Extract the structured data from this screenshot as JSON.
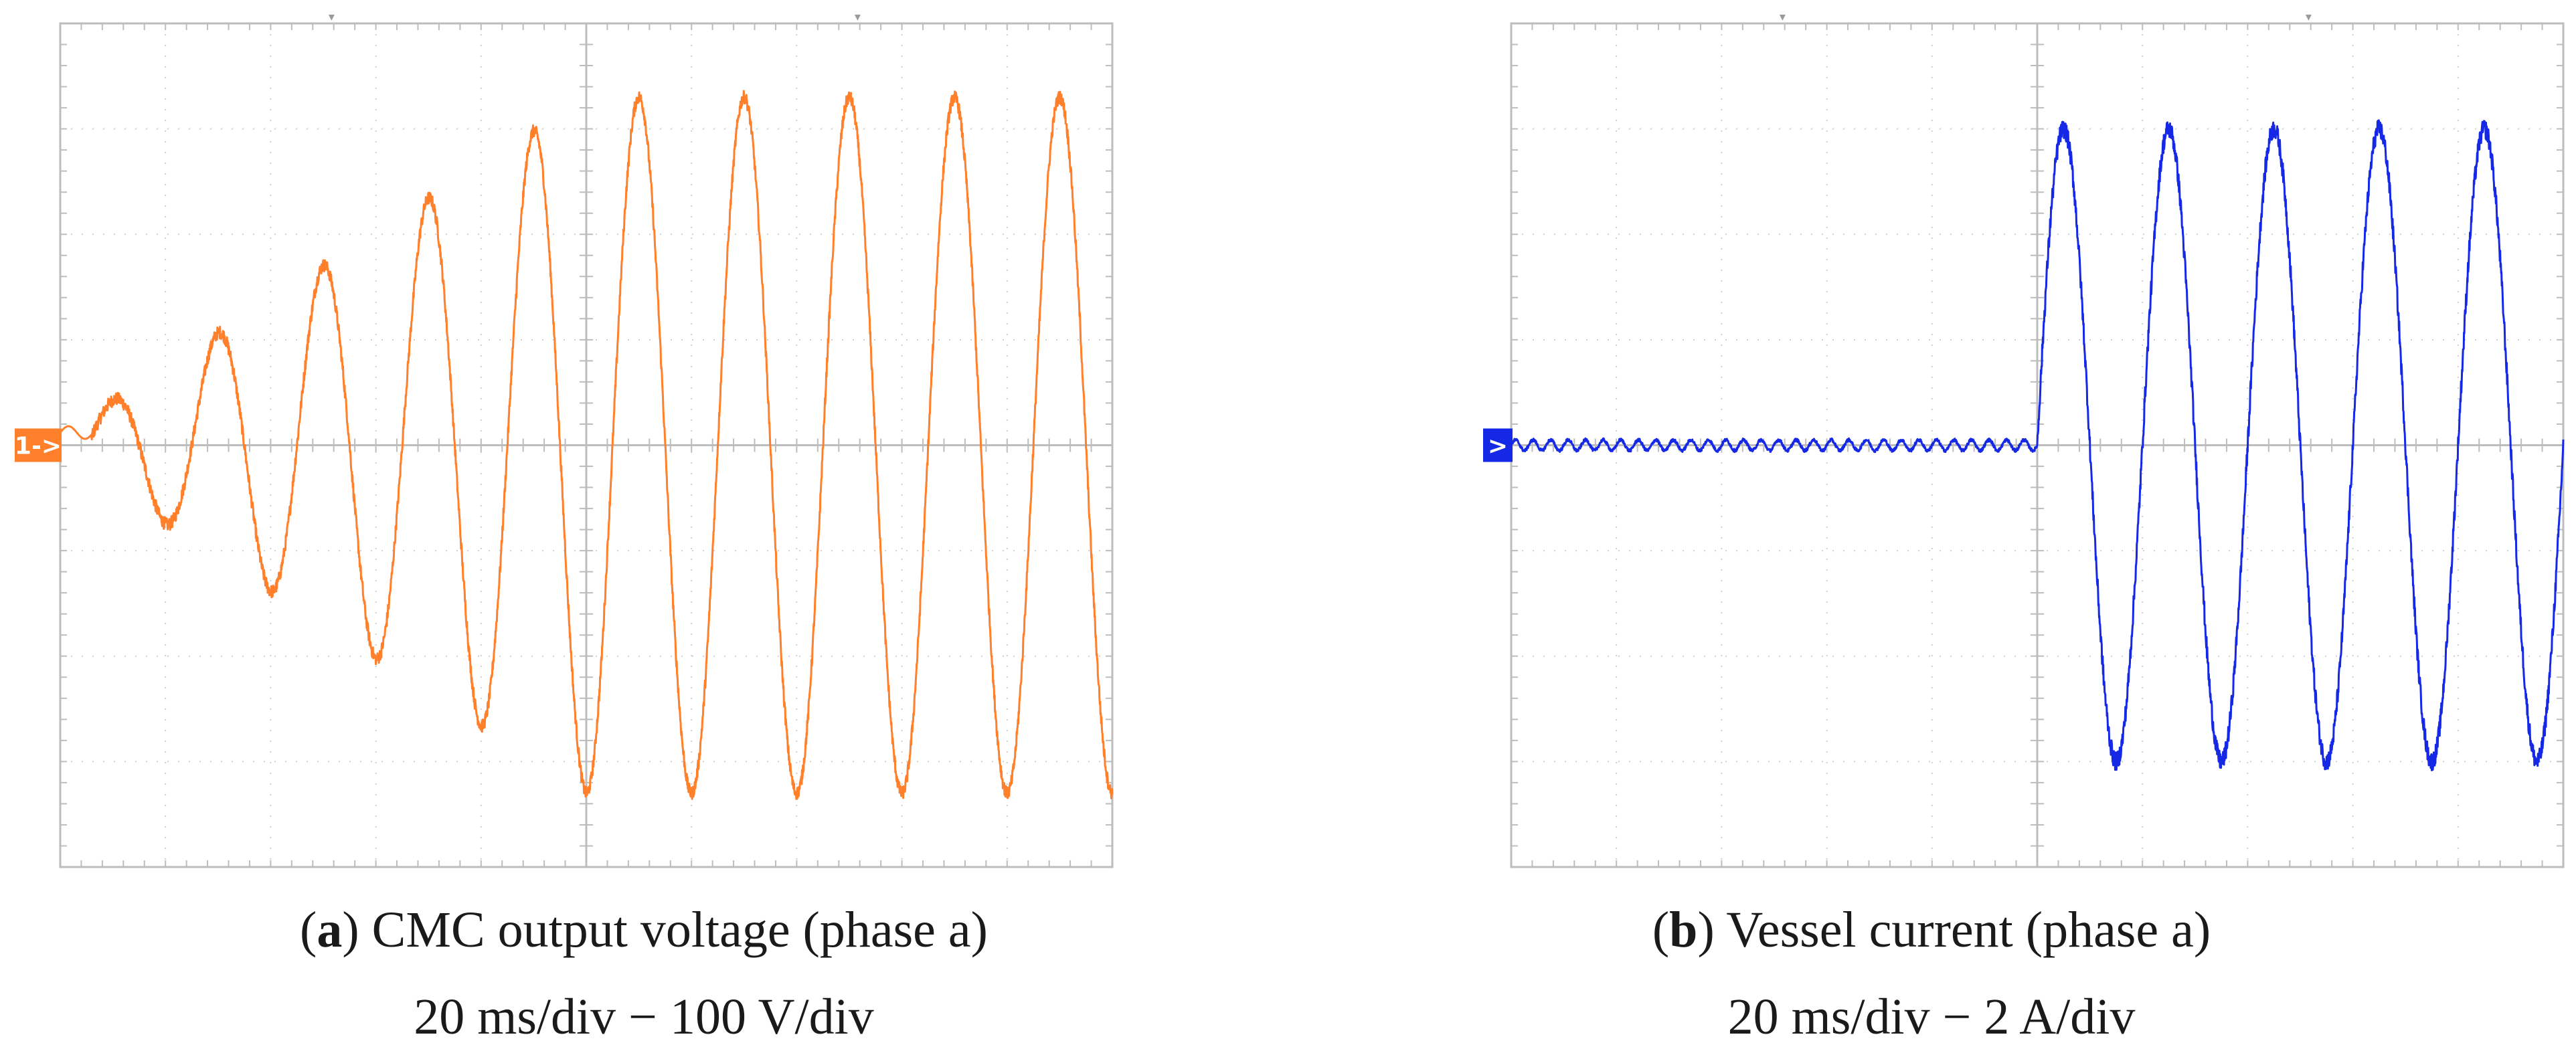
{
  "chart_data": [
    {
      "type": "line",
      "panel_letter": "a",
      "caption": "CMC output voltage (phase a)",
      "scale_text": "20 ms/div − 100 V/div",
      "channel_marker": "1->",
      "color": "#ff7f2a",
      "x_divisions": 10,
      "y_divisions": 8,
      "grid": true,
      "ylabel": "",
      "xlabel": "",
      "series": [
        {
          "frequency_hz": 50,
          "x_unit": "ms",
          "y_unit": "V",
          "x_range_ms": [
            0,
            200
          ],
          "y_range_v": [
            -400,
            400
          ],
          "segments": [
            {
              "t_start_ms": 0,
              "t_end_ms": 6,
              "amplitude_v": 15,
              "note_phase": 0
            },
            {
              "t_start_ms": 6,
              "t_end_ms": 100,
              "amplitude_start_v": 30,
              "amplitude_end_v": 330
            },
            {
              "t_start_ms": 100,
              "t_end_ms": 200,
              "amplitude_v": 330
            }
          ],
          "peaks": [
            {
              "t_ms": 25,
              "v": 80
            },
            {
              "t_ms": 44,
              "v": 150
            },
            {
              "t_ms": 64,
              "v": 215
            },
            {
              "t_ms": 84,
              "v": 275
            },
            {
              "t_ms": 104,
              "v": 325
            },
            {
              "t_ms": 124,
              "v": 330
            },
            {
              "t_ms": 144,
              "v": 330
            },
            {
              "t_ms": 164,
              "v": 330
            },
            {
              "t_ms": 184,
              "v": 330
            }
          ],
          "troughs": [
            {
              "t_ms": 15,
              "v": -55
            },
            {
              "t_ms": 35,
              "v": -120
            },
            {
              "t_ms": 55,
              "v": -190
            },
            {
              "t_ms": 75,
              "v": -255
            },
            {
              "t_ms": 95,
              "v": -320
            },
            {
              "t_ms": 115,
              "v": -335
            },
            {
              "t_ms": 135,
              "v": -340
            },
            {
              "t_ms": 155,
              "v": -335
            },
            {
              "t_ms": 175,
              "v": -335
            },
            {
              "t_ms": 195,
              "v": -335
            }
          ]
        }
      ]
    },
    {
      "type": "line",
      "panel_letter": "b",
      "caption": "Vessel current (phase a)",
      "scale_text": "20 ms/div − 2 A/div",
      "channel_marker": ">",
      "color": "#1428e6",
      "x_divisions": 10,
      "y_divisions": 8,
      "grid": true,
      "ylabel": "",
      "xlabel": "",
      "series": [
        {
          "frequency_hz": 50,
          "x_unit": "ms",
          "y_unit": "A",
          "x_range_ms": [
            0,
            200
          ],
          "y_range_a": [
            -8,
            8
          ],
          "segments": [
            {
              "t_start_ms": 0,
              "t_end_ms": 100,
              "amplitude_a": 0.1,
              "ripple_hz": 300
            },
            {
              "t_start_ms": 100,
              "t_end_ms": 200,
              "amplitude_a": 6.0
            }
          ],
          "peaks": [
            {
              "t_ms": 104,
              "a": 6.0
            },
            {
              "t_ms": 124,
              "a": 6.1
            },
            {
              "t_ms": 144,
              "a": 6.1
            },
            {
              "t_ms": 164,
              "a": 6.1
            },
            {
              "t_ms": 184,
              "a": 6.0
            }
          ],
          "troughs": [
            {
              "t_ms": 114,
              "a": -6.0
            },
            {
              "t_ms": 134,
              "a": -6.0
            },
            {
              "t_ms": 154,
              "a": -6.0
            },
            {
              "t_ms": 174,
              "a": -6.0
            },
            {
              "t_ms": 194,
              "a": -6.0
            }
          ]
        }
      ]
    }
  ]
}
